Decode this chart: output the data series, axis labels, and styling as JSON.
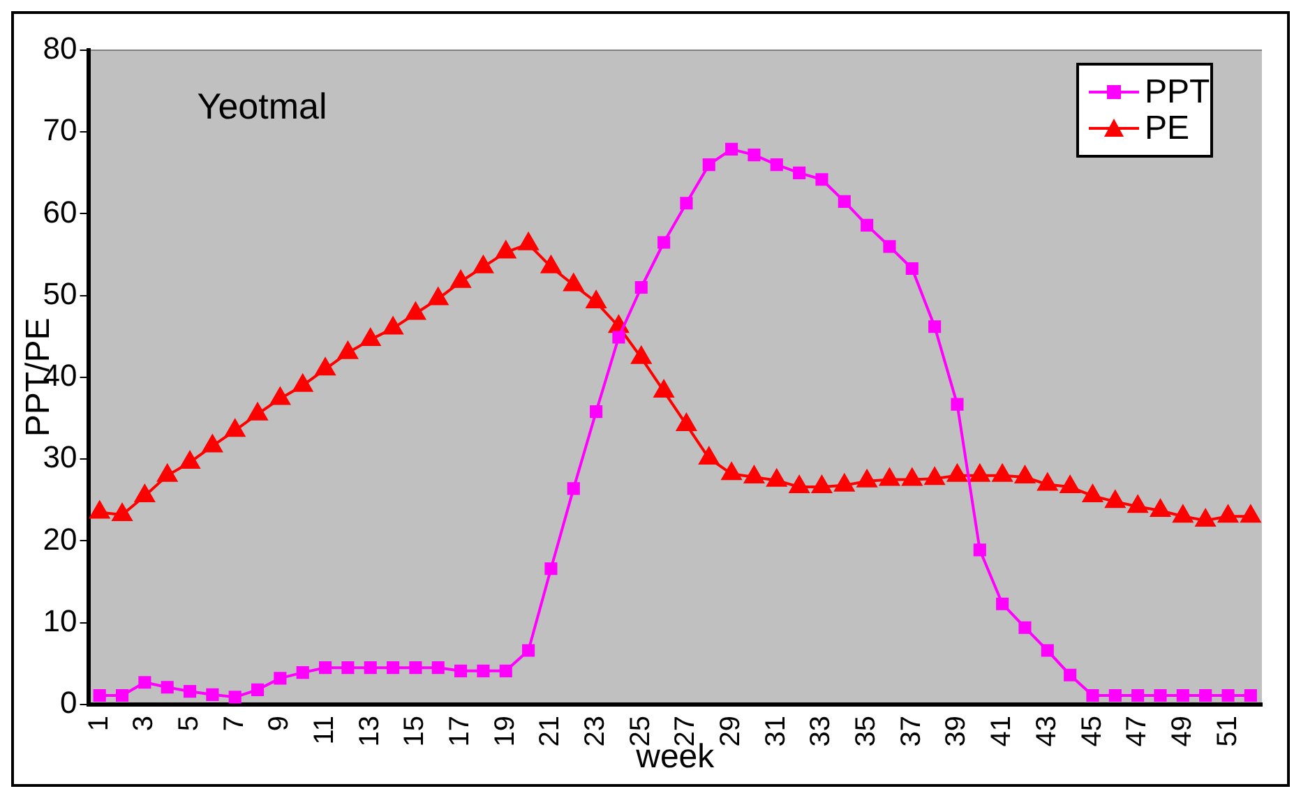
{
  "chart_data": {
    "type": "line",
    "xlabel": "week",
    "ylabel": "PPT/PE",
    "annotations": [
      "Yeotmal"
    ],
    "categories": [
      "1",
      null,
      "3",
      null,
      "5",
      null,
      "7",
      null,
      "9",
      null,
      "11",
      null,
      "13",
      null,
      "15",
      null,
      "17",
      null,
      "19",
      null,
      "21",
      null,
      "23",
      null,
      "25",
      null,
      "27",
      null,
      "29",
      null,
      "31",
      null,
      "33",
      null,
      "35",
      null,
      "37",
      null,
      "39",
      null,
      "41",
      null,
      "43",
      null,
      "45",
      null,
      "47",
      null,
      "49",
      null,
      "51",
      null
    ],
    "series": [
      {
        "name": "PPT",
        "color": "#ff00ff",
        "marker": "square",
        "values": [
          1.1,
          1.1,
          2.7,
          2.1,
          1.6,
          1.2,
          0.9,
          1.8,
          3.2,
          3.9,
          4.5,
          4.5,
          4.5,
          4.5,
          4.5,
          4.5,
          4.1,
          4.1,
          4.1,
          6.6,
          16.6,
          26.4,
          35.8,
          44.9,
          51,
          56.5,
          61.3,
          66,
          67.9,
          67.2,
          66,
          65,
          64.2,
          61.5,
          58.6,
          56,
          53.3,
          46.2,
          36.7,
          18.9,
          12.3,
          9.4,
          6.6,
          3.6,
          1.1,
          1.1,
          1.1,
          1.1,
          1.1,
          1.1,
          1.1,
          1.1
        ]
      },
      {
        "name": "PE",
        "color": "#ff0000",
        "marker": "triangle",
        "values": [
          23.5,
          23.2,
          25.5,
          28,
          29.6,
          31.6,
          33.5,
          35.5,
          37.4,
          39,
          41,
          43,
          44.6,
          46,
          47.8,
          49.6,
          51.7,
          53.5,
          55.3,
          56.3,
          53.5,
          51.3,
          49.2,
          46.2,
          42.4,
          38.3,
          34.2,
          30.1,
          28.2,
          27.8,
          27.4,
          26.6,
          26.6,
          26.8,
          27.3,
          27.5,
          27.5,
          27.6,
          28,
          28,
          28,
          27.8,
          26.9,
          26.6,
          25.5,
          24.8,
          24.2,
          23.7,
          23,
          22.5,
          23,
          23
        ]
      }
    ],
    "ylim": [
      0,
      80
    ],
    "yticks": [
      0,
      10,
      20,
      30,
      40,
      50,
      60,
      70,
      80
    ],
    "grid": false,
    "legend": "top right"
  }
}
